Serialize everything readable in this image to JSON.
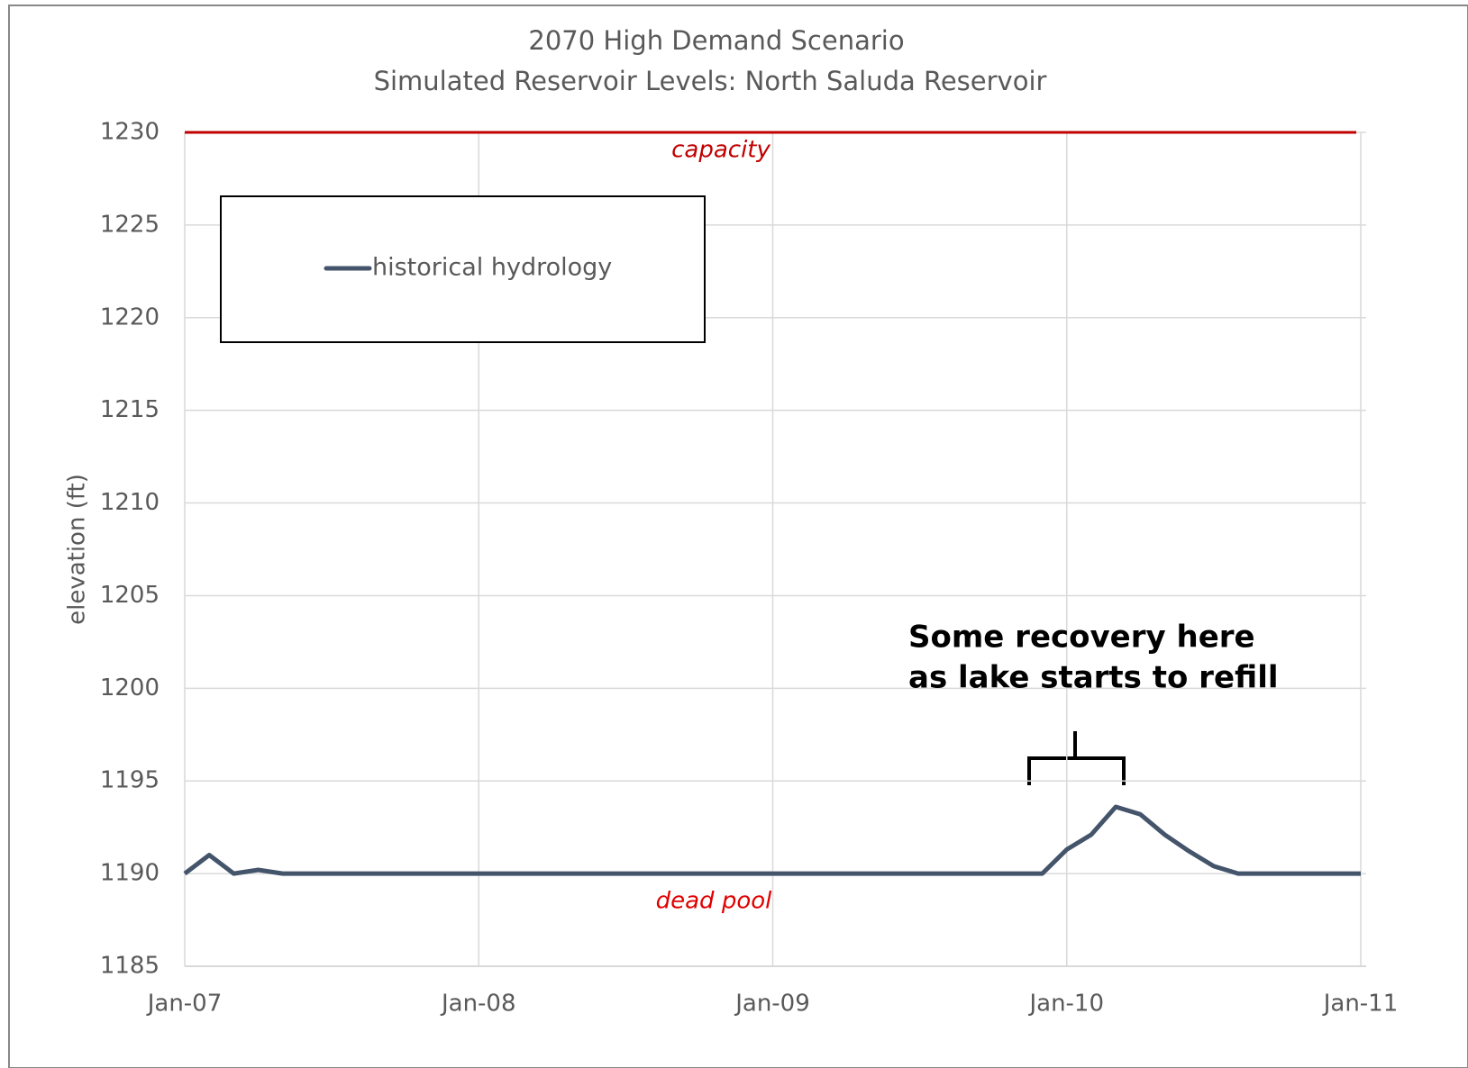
{
  "chart_data": {
    "type": "line",
    "title": "2070 High Demand Scenario",
    "subtitle": "Simulated Reservoir Levels: North Saluda Reservoir",
    "y_label": "elevation (ft)",
    "x": [
      "Jan-07",
      "Feb-07",
      "Mar-07",
      "Apr-07",
      "May-07",
      "Jun-07",
      "Jul-07",
      "Aug-07",
      "Sep-07",
      "Oct-07",
      "Nov-07",
      "Dec-07",
      "Jan-08",
      "Feb-08",
      "Mar-08",
      "Apr-08",
      "May-08",
      "Jun-08",
      "Jul-08",
      "Aug-08",
      "Sep-08",
      "Oct-08",
      "Nov-08",
      "Dec-08",
      "Jan-09",
      "Feb-09",
      "Mar-09",
      "Apr-09",
      "May-09",
      "Jun-09",
      "Jul-09",
      "Aug-09",
      "Sep-09",
      "Oct-09",
      "Nov-09",
      "Dec-09",
      "Jan-10",
      "Feb-10",
      "Mar-10",
      "Apr-10",
      "May-10",
      "Jun-10",
      "Jul-10",
      "Aug-10",
      "Sep-10",
      "Oct-10",
      "Nov-10",
      "Dec-10",
      "Jan-11"
    ],
    "series": [
      {
        "name": "historical hydrology",
        "color": "#44546a",
        "values": [
          1190,
          1191,
          1190,
          1190.2,
          1190,
          1190,
          1190,
          1190,
          1190,
          1190,
          1190,
          1190,
          1190,
          1190,
          1190,
          1190,
          1190,
          1190,
          1190,
          1190,
          1190,
          1190,
          1190,
          1190,
          1190,
          1190,
          1190,
          1190,
          1190,
          1190,
          1190,
          1190,
          1190,
          1190,
          1190,
          1190,
          1191.3,
          1192.1,
          1193.6,
          1193.2,
          1192.1,
          1191.2,
          1190.4,
          1190,
          1190,
          1190,
          1190,
          1190,
          1190
        ]
      }
    ],
    "reference_lines": [
      {
        "label": "capacity",
        "value": 1230,
        "color": "#c00000"
      }
    ],
    "annotations": [
      {
        "text": "dead pool",
        "value": 1190,
        "color": "#e00000"
      },
      {
        "text": [
          "Some recovery here",
          "as lake starts to refill"
        ]
      }
    ],
    "xlim": [
      "Jan-07",
      "Jan-11"
    ],
    "xticks": [
      "Jan-07",
      "Jan-08",
      "Jan-09",
      "Jan-10",
      "Jan-11"
    ],
    "ylim": [
      1185,
      1230
    ],
    "yticks": [
      1185,
      1190,
      1195,
      1200,
      1205,
      1210,
      1215,
      1220,
      1225,
      1230
    ],
    "grid": true,
    "legend": "upper left"
  }
}
